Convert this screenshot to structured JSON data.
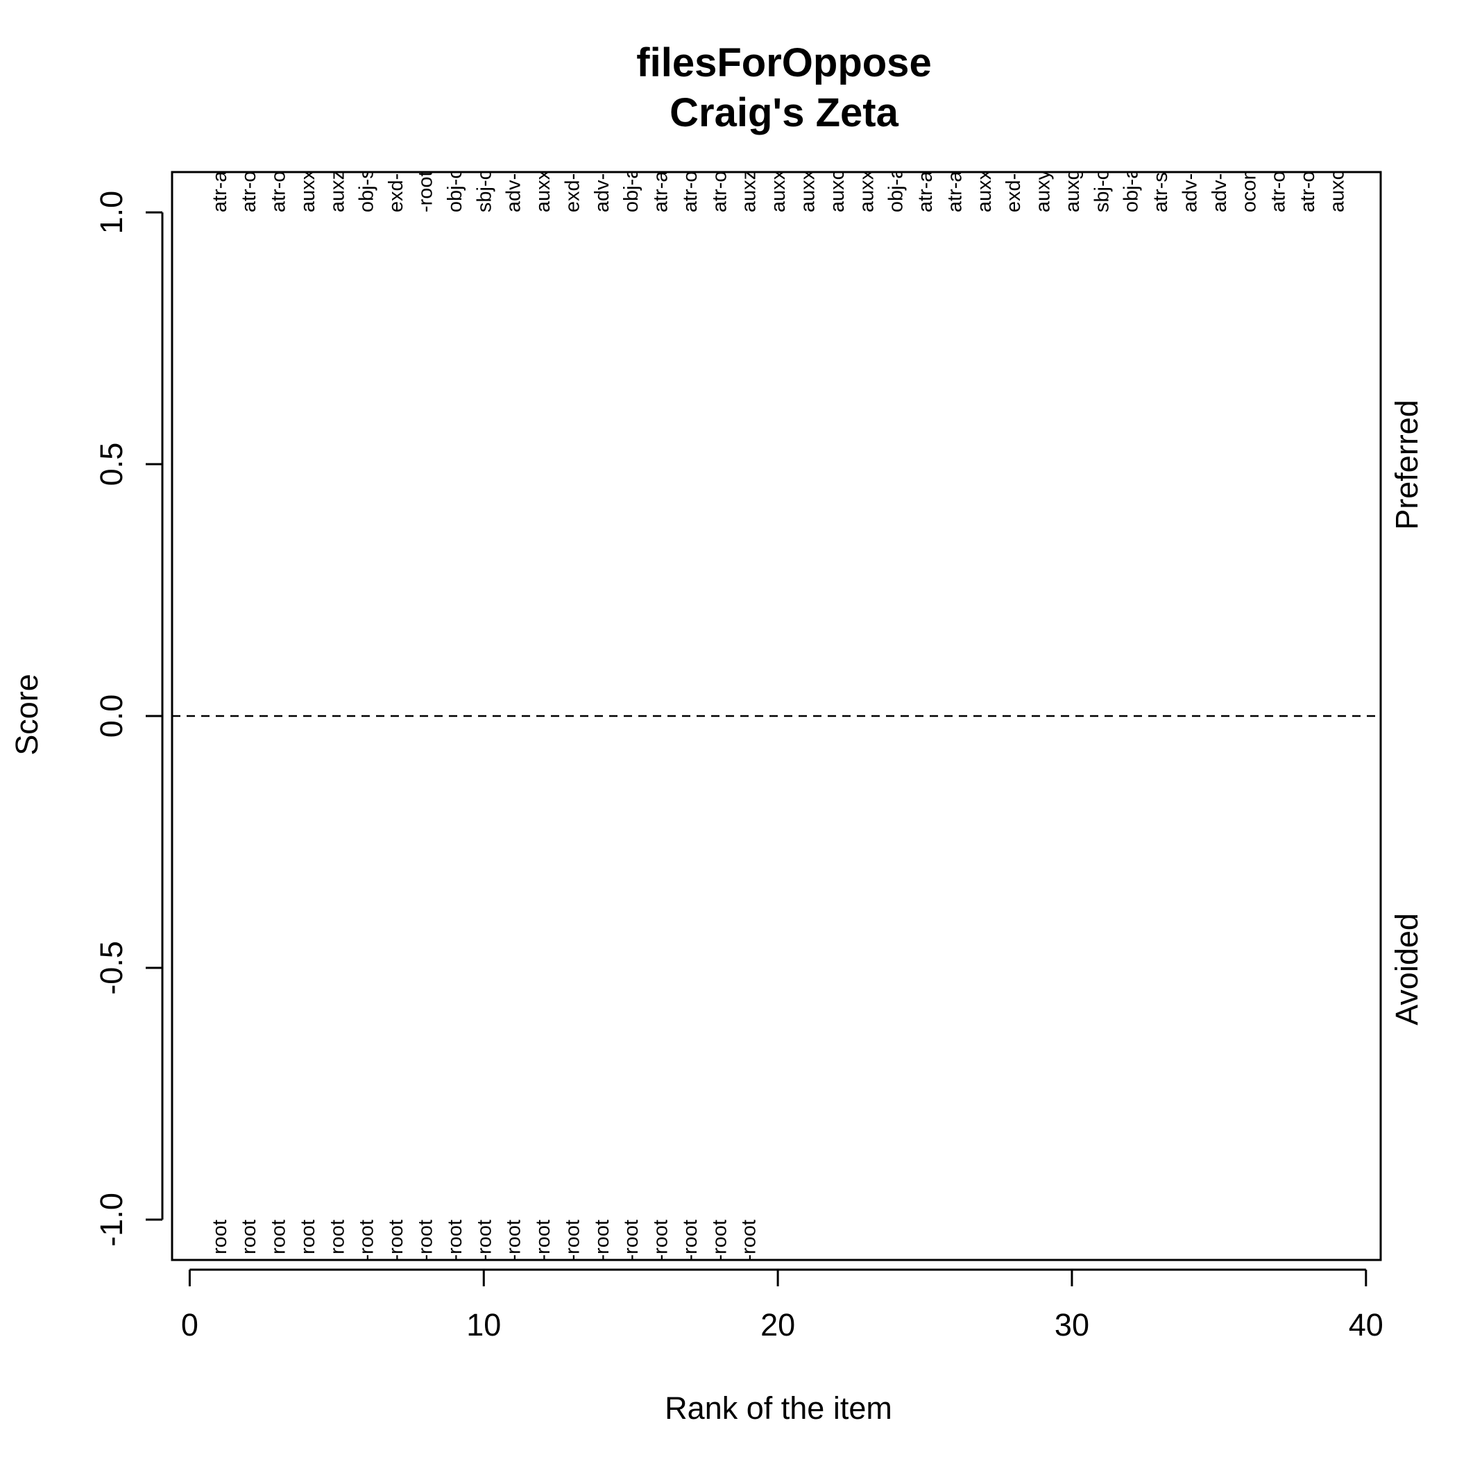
{
  "chart_data": {
    "type": "scatter",
    "title": "filesForOppose",
    "subtitle": "Craig's Zeta",
    "xlabel": "Rank of the item",
    "ylabel": "Score",
    "xlim": [
      -0.6,
      40.5
    ],
    "ylim": [
      -1.08,
      1.08
    ],
    "x_ticks": [
      "0",
      "10",
      "20",
      "30",
      "40"
    ],
    "y_ticks": [
      "-1.0",
      "-0.5",
      "0.0",
      "0.5",
      "1.0"
    ],
    "reference_line": {
      "y": 0,
      "style": "dashed"
    },
    "side_labels": {
      "preferred": "Preferred",
      "avoided": "Avoided"
    },
    "preferred": [
      {
        "rank": 1,
        "label": "atr-auxx-pred-coord-root"
      },
      {
        "rank": 2,
        "label": "atr-obj-pred-coord-root"
      },
      {
        "rank": 3,
        "label": "atr-obj-sbj-co-coord-root"
      },
      {
        "rank": 4,
        "label": "auxx-auxz-obj-pred-root"
      },
      {
        "rank": 5,
        "label": "auxz-exd-pred-root"
      },
      {
        "rank": 6,
        "label": "obj-sbj-coord-root"
      },
      {
        "rank": 7,
        "label": "exd-root"
      },
      {
        "rank": 8,
        "label": "-root"
      },
      {
        "rank": 9,
        "label": "obj-obj-auxc-pred-root"
      },
      {
        "rank": 10,
        "label": "sbj-obj-auxc-pred-root"
      },
      {
        "rank": 11,
        "label": "adv-adv-auxc-pred-root"
      },
      {
        "rank": 12,
        "label": "auxx-exd-coord-root"
      },
      {
        "rank": 13,
        "label": "exd-coord-root"
      },
      {
        "rank": 14,
        "label": "adv-co-coord-auxc-pred-root"
      },
      {
        "rank": 15,
        "label": "obj-auxc-pred-root"
      },
      {
        "rank": 16,
        "label": "atr-adv-co-auxp-coord-root"
      },
      {
        "rank": 17,
        "label": "atr-obj-auxp-obj-pred-root"
      },
      {
        "rank": 18,
        "label": "atr-obj-adv-co-coord-root"
      },
      {
        "rank": 19,
        "label": "auxz-exd-pred-root"
      },
      {
        "rank": 20,
        "label": "auxx-auxc-adv-pred-root"
      },
      {
        "rank": 21,
        "label": "auxx-adv-co-coord-auxc-pred-root"
      },
      {
        "rank": 22,
        "label": "auxc-coord-pred-root"
      },
      {
        "rank": 23,
        "label": "auxx-exd-pred-root"
      },
      {
        "rank": 24,
        "label": "obj-auxp-obj-pred-co-coord-root"
      },
      {
        "rank": 25,
        "label": "atr-adv-auxp-obj-co-coord-root"
      },
      {
        "rank": 26,
        "label": "atr-atr-pnom-pred-root"
      },
      {
        "rank": 27,
        "label": "auxx-root"
      },
      {
        "rank": 28,
        "label": "exd-pred-root"
      },
      {
        "rank": 29,
        "label": "auxy-obj-pred-root"
      },
      {
        "rank": 30,
        "label": "auxg-pred-root"
      },
      {
        "rank": 31,
        "label": "sbj-obj-co-coord-pred-root"
      },
      {
        "rank": 32,
        "label": "obj-adv-co-coord-auxc-pred-root"
      },
      {
        "rank": 33,
        "label": "atr-sbj-obj-co-coord-pred-root"
      },
      {
        "rank": 34,
        "label": "adv-co-auxp-coord-pred-root"
      },
      {
        "rank": 35,
        "label": "adv-adv-co-coord-auxc-pred-root"
      },
      {
        "rank": 36,
        "label": "ocomp-pred-root"
      },
      {
        "rank": 37,
        "label": "atr-obj-auxp-pred-co-coord-root"
      },
      {
        "rank": 38,
        "label": "atr-obj-sbj-co-coord-pred-root"
      },
      {
        "rank": 39,
        "label": "auxc-adv-pred-co-coord-root"
      }
    ],
    "avoided": [
      {
        "rank": 1,
        "label": "root"
      },
      {
        "rank": 2,
        "label": "root"
      },
      {
        "rank": 3,
        "label": "root"
      },
      {
        "rank": 4,
        "label": "root"
      },
      {
        "rank": 5,
        "label": "root"
      },
      {
        "rank": 6,
        "label": "pred-root"
      },
      {
        "rank": 7,
        "label": "pred-root"
      },
      {
        "rank": 8,
        "label": "pred-root"
      },
      {
        "rank": 9,
        "label": "sbj-pred-root"
      },
      {
        "rank": 10,
        "label": "auxp-pred-root"
      },
      {
        "rank": 11,
        "label": "pred-co-coord-root"
      },
      {
        "rank": 12,
        "label": "adv-adv-pred-root"
      },
      {
        "rank": 13,
        "label": "pred-co-coord-pred-root"
      },
      {
        "rank": 14,
        "label": "sbj-pred-co-coord-root"
      },
      {
        "rank": 15,
        "label": "adv-pred-co-coord-root"
      },
      {
        "rank": 16,
        "label": "adv-pred-co-coord-root"
      },
      {
        "rank": 17,
        "label": "obj-co-coord-pred-root"
      },
      {
        "rank": 18,
        "label": "co-coord-pred-co-coord-root"
      },
      {
        "rank": 19,
        "label": "co-coord-auxp-pred-co-coord-root"
      }
    ]
  }
}
